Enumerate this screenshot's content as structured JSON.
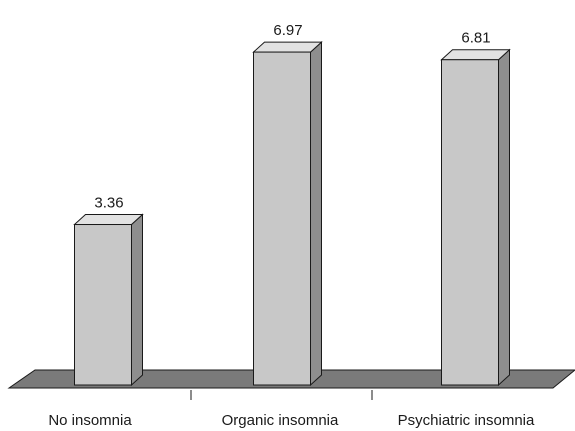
{
  "chart_data": {
    "type": "bar",
    "style": "3d",
    "categories": [
      "No insomnia",
      "Organic insomnia",
      "Psychiatric insomnia"
    ],
    "values": [
      3.36,
      6.97,
      6.81
    ],
    "value_labels": [
      "3.36",
      "6.97",
      "6.81"
    ],
    "title": "",
    "xlabel": "",
    "ylabel": "",
    "ylim": [
      0,
      7.6
    ],
    "grid": false,
    "legend": "none",
    "colors": {
      "bar_front": "#c8c8c8",
      "bar_side": "#8e8e8e",
      "bar_top": "#e2e2e2",
      "floor": "#7a7a7a",
      "outline": "#1a1a1a"
    }
  }
}
